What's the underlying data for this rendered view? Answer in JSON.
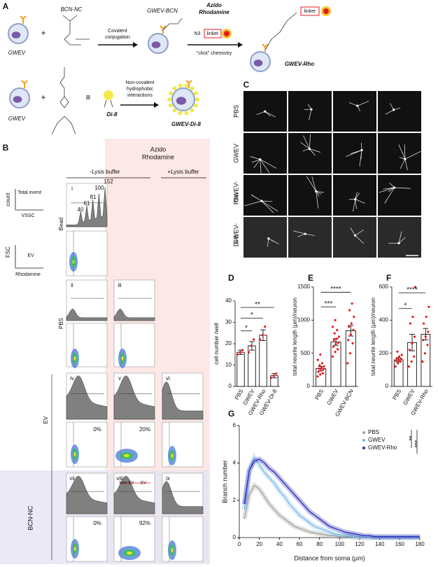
{
  "panel_a": {
    "label": "A",
    "gwev_1": "GWEV",
    "plus_1": "+",
    "bcn_nc": "BCN-NC",
    "arrow_1": [
      "Covalent",
      "conjugation"
    ],
    "gwev_bcn": "GWEV-BCN",
    "azido": [
      "Azido",
      "Rhodamine"
    ],
    "n3": "N3",
    "linker_1": "linker",
    "click": "\"click\" chemistry",
    "linker_2": "linker",
    "gwev_rho": "GWEV-Rho",
    "gwev_2": "GWEV",
    "plus_2": "+",
    "equiv": "≡",
    "di8": "Di-8",
    "arrow_2": [
      "Non-covalent",
      "hydrophobic",
      "interactions"
    ],
    "gwev_di8": "GWEV-Di-8"
  },
  "panel_b": {
    "label": "B",
    "rhodamine_header": [
      "Azido",
      "Rhodamine"
    ],
    "minus_lysis": "-Lysis buffer",
    "plus_lysis": "+Lysis buffer",
    "axis_key": {
      "count": "count",
      "total_event": "Total event",
      "vssc": "VSSC",
      "fsc": "FSC",
      "ev": "EV",
      "rhodamine": "Rhodamine"
    },
    "rows": {
      "bead": "Bead",
      "pbs": "PBS",
      "ev": "EV",
      "bcn_nc": "BCN-NC"
    },
    "subpanels": [
      "i",
      "ii",
      "iii",
      "iv",
      "v",
      "vi",
      "vii",
      "viii",
      "ix"
    ],
    "bead_peaks": [
      "40",
      "61",
      "81",
      "100",
      "152"
    ],
    "percentages": [
      "0%",
      "20%",
      "0%",
      "92%"
    ],
    "gates": [
      "Non-EV",
      "EV"
    ]
  },
  "panel_c": {
    "label": "C",
    "rows": [
      [
        "PBS"
      ],
      [
        "GWEV"
      ],
      [
        "GWEV-",
        "Rho"
      ],
      [
        "GWEV-",
        "Di-8"
      ]
    ]
  },
  "chart_data": [
    {
      "type": "bar",
      "label": "D",
      "y_label": "cell number /well",
      "categories": [
        "PBS",
        "GWEV",
        "GWEV-Rho",
        "GWEV-Di-8"
      ],
      "values": [
        16,
        19,
        24,
        5
      ],
      "errors": [
        1,
        2,
        2.5,
        1
      ],
      "points": [
        [
          15,
          16,
          17
        ],
        [
          16,
          19,
          22
        ],
        [
          22,
          24,
          28
        ],
        [
          4,
          5,
          6
        ]
      ],
      "ylim": [
        0,
        40
      ],
      "yticks": [
        0,
        10,
        20,
        30,
        40
      ],
      "color": "#ffffff",
      "point_color": "#e8191c",
      "annotations": [
        "*",
        "*",
        "**"
      ]
    },
    {
      "type": "bar",
      "label": "E",
      "y_label": "total neurite length (μm)/neuron",
      "categories": [
        "PBS",
        "GWEV",
        "GWEV-BCN"
      ],
      "values": [
        270,
        670,
        840
      ],
      "errors": [
        30,
        50,
        80
      ],
      "points": [
        [
          150,
          180,
          200,
          220,
          240,
          260,
          270,
          280,
          300,
          320,
          350,
          400,
          480
        ],
        [
          450,
          520,
          560,
          600,
          640,
          660,
          700,
          720,
          750,
          800,
          850,
          900,
          1000
        ],
        [
          350,
          500,
          650,
          700,
          780,
          850,
          900,
          950,
          1050,
          1150,
          1250
        ]
      ],
      "ylim": [
        0,
        1500
      ],
      "yticks": [
        0,
        500,
        1000,
        1500
      ],
      "color": "#ffffff",
      "point_color": "#e8191c",
      "annotations": [
        "***",
        "****"
      ]
    },
    {
      "type": "bar",
      "label": "F",
      "y_label": "total neurite length (μm)/neuron",
      "categories": [
        "PBS",
        "GWEV",
        "GWEV-Rho"
      ],
      "values": [
        160,
        265,
        315
      ],
      "errors": [
        12,
        50,
        35
      ],
      "points": [
        [
          120,
          140,
          150,
          155,
          160,
          165,
          170,
          180,
          190,
          210
        ],
        [
          120,
          150,
          180,
          220,
          260,
          300,
          380,
          420,
          600
        ],
        [
          150,
          200,
          250,
          280,
          300,
          330,
          380,
          420,
          480
        ]
      ],
      "ylim": [
        0,
        600
      ],
      "yticks": [
        0,
        200,
        400,
        600
      ],
      "color": "#ffffff",
      "point_color": "#e8191c",
      "annotations": [
        "*",
        "****"
      ]
    },
    {
      "type": "line",
      "label": "G",
      "x_label": "Distance from soma (μm)",
      "y_label": "Branch number",
      "x": [
        5,
        10,
        15,
        20,
        25,
        30,
        35,
        40,
        45,
        50,
        55,
        60,
        65,
        70,
        75,
        80,
        85,
        90,
        95,
        100,
        105,
        110,
        115,
        120,
        125,
        130,
        135,
        140,
        145,
        150,
        155,
        160,
        165,
        170,
        175,
        180
      ],
      "series": [
        {
          "name": "PBS",
          "color": "#a0a0a0",
          "values": [
            1.0,
            2.3,
            2.8,
            2.6,
            2.2,
            1.8,
            1.5,
            1.2,
            1.0,
            0.8,
            0.6,
            0.5,
            0.4,
            0.3,
            0.25,
            0.2,
            0.15,
            0.1,
            0.1,
            0.05,
            0.05,
            0.05,
            0,
            0,
            0,
            0,
            0,
            0,
            0,
            0,
            0,
            0,
            0,
            0,
            0,
            0
          ]
        },
        {
          "name": "GWEV",
          "color": "#7ab8e8",
          "values": [
            1.5,
            3.6,
            4.3,
            3.9,
            3.5,
            3.2,
            2.9,
            2.5,
            2.2,
            1.8,
            1.5,
            1.2,
            1.0,
            0.8,
            0.6,
            0.5,
            0.4,
            0.3,
            0.2,
            0.15,
            0.1,
            0.1,
            0.05,
            0.05,
            0,
            0,
            0,
            0,
            0,
            0,
            0,
            0,
            0,
            0,
            0,
            0
          ]
        },
        {
          "name": "GWEV-Rho",
          "color": "#2b2bb8",
          "values": [
            1.8,
            3.6,
            4.1,
            4.2,
            4.0,
            3.7,
            3.5,
            3.2,
            2.9,
            2.6,
            2.3,
            2.0,
            1.7,
            1.4,
            1.2,
            1.0,
            0.8,
            0.6,
            0.5,
            0.4,
            0.3,
            0.25,
            0.2,
            0.15,
            0.1,
            0.1,
            0.05,
            0.05,
            0.05,
            0.05,
            0.05,
            0.05,
            0.05,
            0.05,
            0.05,
            0.05
          ]
        }
      ],
      "xlim": [
        0,
        180
      ],
      "xticks": [
        0,
        20,
        40,
        60,
        80,
        100,
        120,
        140,
        160,
        180
      ],
      "ylim": [
        0,
        6
      ],
      "yticks": [
        0,
        2,
        4,
        6
      ],
      "legend": "top right",
      "annotations": [
        "**",
        "***"
      ]
    }
  ]
}
